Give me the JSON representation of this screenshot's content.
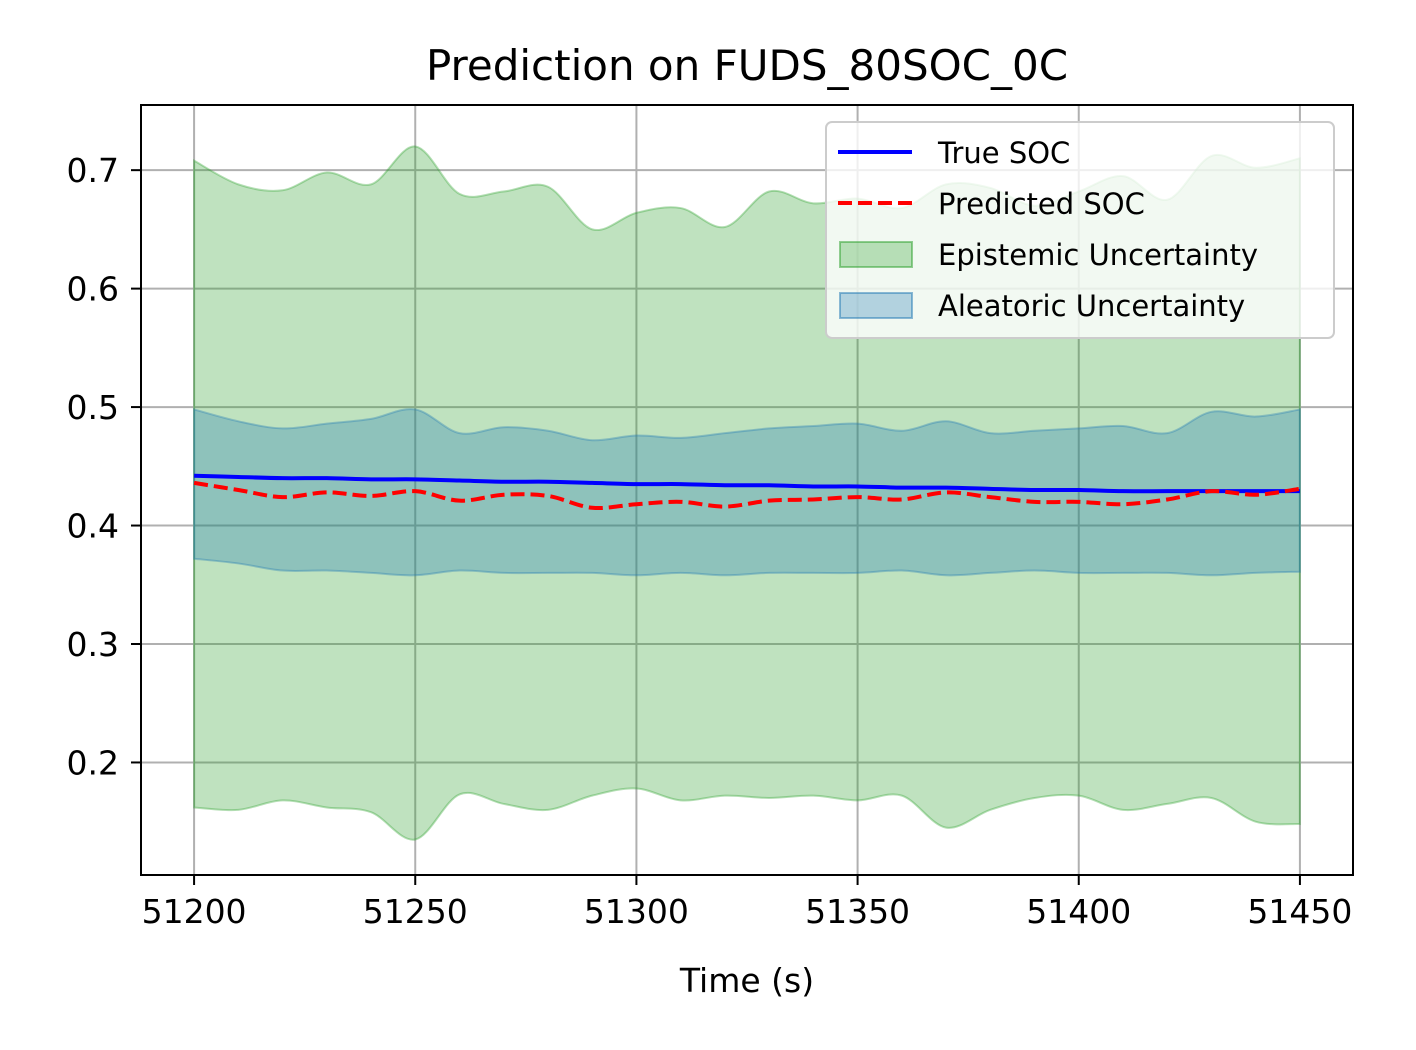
{
  "chart_data": {
    "type": "line",
    "title": "Prediction on FUDS_80SOC_0C",
    "xlabel": "Time (s)",
    "ylabel": "",
    "xlim": [
      51188,
      51462
    ],
    "ylim": [
      0.105,
      0.755
    ],
    "grid": true,
    "legend_position": "top-right",
    "x_ticks": [
      51200,
      51250,
      51300,
      51350,
      51400,
      51450
    ],
    "y_ticks": [
      0.2,
      0.3,
      0.4,
      0.5,
      0.6,
      0.7
    ],
    "x_tick_labels": [
      "51200",
      "51250",
      "51300",
      "51350",
      "51400",
      "51450"
    ],
    "y_tick_labels": [
      "0.2",
      "0.3",
      "0.4",
      "0.5",
      "0.6",
      "0.7"
    ],
    "x": [
      51200,
      51210,
      51220,
      51230,
      51240,
      51250,
      51260,
      51270,
      51280,
      51290,
      51300,
      51310,
      51320,
      51330,
      51340,
      51350,
      51360,
      51370,
      51380,
      51390,
      51400,
      51410,
      51420,
      51430,
      51440,
      51450
    ],
    "series": [
      {
        "name": "True SOC",
        "kind": "line",
        "color": "#0000ff",
        "dash": "solid",
        "values": [
          0.442,
          0.441,
          0.44,
          0.44,
          0.439,
          0.439,
          0.438,
          0.437,
          0.437,
          0.436,
          0.435,
          0.435,
          0.434,
          0.434,
          0.433,
          0.433,
          0.432,
          0.432,
          0.431,
          0.43,
          0.43,
          0.429,
          0.429,
          0.429,
          0.429,
          0.429
        ]
      },
      {
        "name": "Predicted SOC",
        "kind": "line",
        "color": "#ff0000",
        "dash": "dashed",
        "values": [
          0.436,
          0.43,
          0.424,
          0.428,
          0.425,
          0.429,
          0.421,
          0.426,
          0.425,
          0.415,
          0.418,
          0.42,
          0.416,
          0.421,
          0.422,
          0.424,
          0.422,
          0.428,
          0.424,
          0.42,
          0.42,
          0.418,
          0.422,
          0.429,
          0.426,
          0.431
        ]
      },
      {
        "name": "Epistemic Uncertainty",
        "kind": "band",
        "color": "#2ca02c",
        "lower": [
          0.162,
          0.16,
          0.168,
          0.162,
          0.158,
          0.135,
          0.173,
          0.165,
          0.16,
          0.172,
          0.178,
          0.168,
          0.172,
          0.17,
          0.172,
          0.168,
          0.172,
          0.145,
          0.16,
          0.17,
          0.172,
          0.16,
          0.165,
          0.17,
          0.15,
          0.148
        ],
        "upper": [
          0.708,
          0.688,
          0.683,
          0.698,
          0.688,
          0.72,
          0.68,
          0.682,
          0.686,
          0.65,
          0.664,
          0.668,
          0.652,
          0.682,
          0.672,
          0.676,
          0.668,
          0.688,
          0.685,
          0.67,
          0.682,
          0.695,
          0.675,
          0.712,
          0.702,
          0.71
        ]
      },
      {
        "name": "Aleatoric Uncertainty",
        "kind": "band",
        "color": "#1f77b4",
        "lower": [
          0.372,
          0.368,
          0.362,
          0.362,
          0.36,
          0.358,
          0.362,
          0.36,
          0.36,
          0.36,
          0.358,
          0.36,
          0.358,
          0.36,
          0.36,
          0.36,
          0.362,
          0.358,
          0.36,
          0.362,
          0.36,
          0.36,
          0.36,
          0.358,
          0.36,
          0.361
        ],
        "upper": [
          0.498,
          0.488,
          0.482,
          0.486,
          0.49,
          0.498,
          0.478,
          0.483,
          0.48,
          0.472,
          0.476,
          0.474,
          0.478,
          0.482,
          0.484,
          0.486,
          0.48,
          0.488,
          0.478,
          0.48,
          0.482,
          0.484,
          0.478,
          0.496,
          0.492,
          0.498
        ]
      }
    ]
  }
}
